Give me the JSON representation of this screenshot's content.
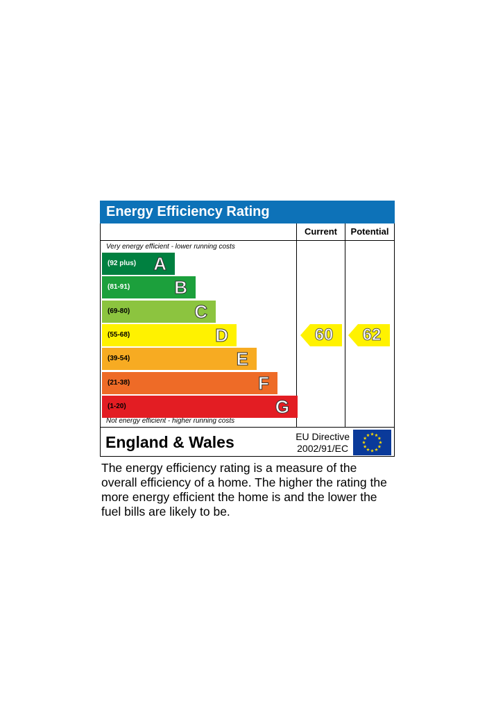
{
  "title": "Energy Efficiency Rating",
  "columns": {
    "current": "Current",
    "potential": "Potential"
  },
  "top_note": "Very energy efficient - lower running costs",
  "bottom_note": "Not energy efficient - higher running costs",
  "bands": [
    {
      "letter": "A",
      "range": "(92 plus)",
      "color": "#008040",
      "light_text": true
    },
    {
      "letter": "B",
      "range": "(81-91)",
      "color": "#1ca03c",
      "light_text": true
    },
    {
      "letter": "C",
      "range": "(69-80)",
      "color": "#8cc43f",
      "light_text": false
    },
    {
      "letter": "D",
      "range": "(55-68)",
      "color": "#fff200",
      "light_text": false
    },
    {
      "letter": "E",
      "range": "(39-54)",
      "color": "#f7ab22",
      "light_text": false
    },
    {
      "letter": "F",
      "range": "(21-38)",
      "color": "#ee6b27",
      "light_text": false
    },
    {
      "letter": "G",
      "range": "(1-20)",
      "color": "#e31d23",
      "light_text": false
    }
  ],
  "current_rating": {
    "value": "60",
    "band": "D",
    "color": "#fff200"
  },
  "potential_rating": {
    "value": "62",
    "band": "D",
    "color": "#fff200"
  },
  "footer": {
    "region": "England & Wales",
    "directive_line1": "EU Directive",
    "directive_line2": "2002/91/EC",
    "flag_icon": "eu-flag-icon"
  },
  "description": "The energy efficiency rating is a measure of the overall efficiency of a home. The higher the rating the more energy efficient the home is and the lower the fuel bills are likely to be."
}
